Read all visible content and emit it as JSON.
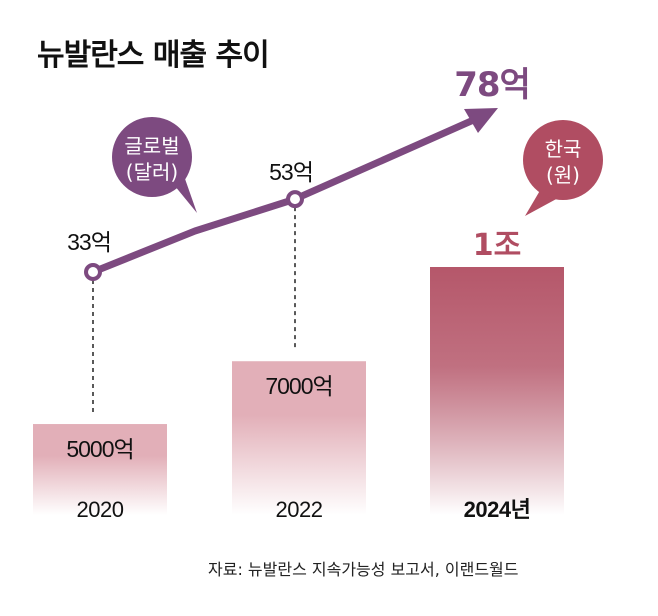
{
  "title": "뉴발란스 매출 추이",
  "source": "자료: 뉴발란스 지속가능성 보고서, 이랜드월드",
  "colors": {
    "line": "#7d4a80",
    "bar_light": "#e2afb8",
    "bar_dark": "#b5576a",
    "korea_label": "#b04d62",
    "global_label": "#7d4a80"
  },
  "chart_data": {
    "type": "bar+line",
    "categories": [
      "2020",
      "2022",
      "2024년"
    ],
    "series": [
      {
        "name": "한국 (원)",
        "type": "bar",
        "unit": "억 원",
        "values": [
          5000,
          7000,
          10000
        ],
        "labels": [
          "5000억",
          "7000억",
          "1조"
        ]
      },
      {
        "name": "글로벌 (달러)",
        "type": "line",
        "unit": "억 달러",
        "values": [
          33,
          53,
          78
        ],
        "labels": [
          "33억",
          "53억",
          "78억"
        ]
      }
    ],
    "legend": [
      {
        "label_line1": "글로벌",
        "label_line2": "(달러)",
        "series": "line",
        "placement": "top-left"
      },
      {
        "label_line1": "한국",
        "label_line2": "(원)",
        "series": "bar",
        "placement": "top-right"
      }
    ],
    "title": "뉴발란스 매출 추이",
    "xlabel": "",
    "ylabel": "",
    "grid": false
  }
}
